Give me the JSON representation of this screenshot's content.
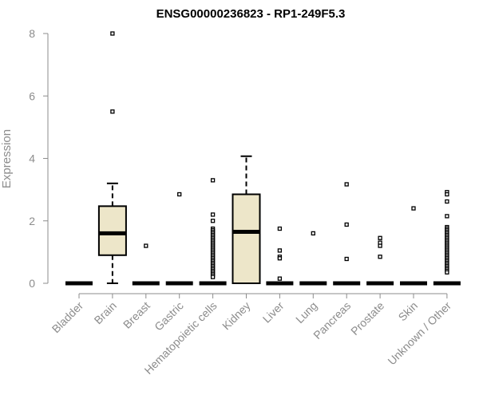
{
  "chart_data": {
    "type": "boxplot",
    "title": "ENSG00000236823 - RP1-249F5.3",
    "ylabel": "Expression",
    "xlabel": "",
    "ylim": [
      0,
      8
    ],
    "yticks": [
      0,
      2,
      4,
      6,
      8
    ],
    "box_fill": "#ede6c9",
    "grid": false,
    "categories": [
      "Bladder",
      "Brain",
      "Breast",
      "Gastric",
      "Hematopoietic cells",
      "Kidney",
      "Liver",
      "Lung",
      "Pancreas",
      "Prostate",
      "Skin",
      "Unknown / Other"
    ],
    "series": [
      {
        "category": "Bladder",
        "q1": 0,
        "median": 0,
        "q3": 0,
        "whisker_low": 0,
        "whisker_high": 0,
        "outliers": []
      },
      {
        "category": "Brain",
        "q1": 0.9,
        "median": 1.6,
        "q3": 2.47,
        "whisker_low": 0,
        "whisker_high": 3.2,
        "outliers": [
          5.5,
          8.0
        ]
      },
      {
        "category": "Breast",
        "q1": 0,
        "median": 0,
        "q3": 0,
        "whisker_low": 0,
        "whisker_high": 0,
        "outliers": [
          1.2
        ]
      },
      {
        "category": "Gastric",
        "q1": 0,
        "median": 0,
        "q3": 0,
        "whisker_low": 0,
        "whisker_high": 0,
        "outliers": [
          2.85
        ]
      },
      {
        "category": "Hematopoietic cells",
        "q1": 0,
        "median": 0,
        "q3": 0,
        "whisker_low": 0,
        "whisker_high": 0,
        "outliers": [
          3.3,
          2.2,
          2.0,
          1.75,
          1.7,
          1.65,
          1.6,
          1.55,
          1.5,
          1.45,
          1.4,
          1.35,
          1.3,
          1.25,
          1.2,
          1.15,
          1.1,
          1.05,
          1.0,
          0.95,
          0.9,
          0.85,
          0.8,
          0.75,
          0.7,
          0.65,
          0.6,
          0.55,
          0.5,
          0.45,
          0.4,
          0.35,
          0.3,
          0.25,
          0.2
        ]
      },
      {
        "category": "Kidney",
        "q1": 0,
        "median": 1.65,
        "q3": 2.85,
        "whisker_low": 0,
        "whisker_high": 4.07,
        "outliers": []
      },
      {
        "category": "Liver",
        "q1": 0,
        "median": 0,
        "q3": 0,
        "whisker_low": 0,
        "whisker_high": 0,
        "outliers": [
          1.75,
          1.05,
          0.85,
          0.8,
          0.15
        ]
      },
      {
        "category": "Lung",
        "q1": 0,
        "median": 0,
        "q3": 0,
        "whisker_low": 0,
        "whisker_high": 0,
        "outliers": [
          1.6
        ]
      },
      {
        "category": "Pancreas",
        "q1": 0,
        "median": 0,
        "q3": 0,
        "whisker_low": 0,
        "whisker_high": 0,
        "outliers": [
          3.17,
          1.88,
          0.78
        ]
      },
      {
        "category": "Prostate",
        "q1": 0,
        "median": 0,
        "q3": 0,
        "whisker_low": 0,
        "whisker_high": 0,
        "outliers": [
          1.45,
          1.3,
          1.2,
          0.85
        ]
      },
      {
        "category": "Skin",
        "q1": 0,
        "median": 0,
        "q3": 0,
        "whisker_low": 0,
        "whisker_high": 0,
        "outliers": [
          2.4
        ]
      },
      {
        "category": "Unknown / Other",
        "q1": 0,
        "median": 0,
        "q3": 0,
        "whisker_low": 0,
        "whisker_high": 0,
        "outliers": [
          2.92,
          2.85,
          2.62,
          2.15,
          1.8,
          1.75,
          1.7,
          1.65,
          1.6,
          1.55,
          1.5,
          1.45,
          1.4,
          1.35,
          1.3,
          1.25,
          1.2,
          1.15,
          1.1,
          1.05,
          1.0,
          0.95,
          0.9,
          0.85,
          0.8,
          0.75,
          0.7,
          0.65,
          0.6,
          0.55,
          0.5,
          0.45,
          0.4,
          0.35
        ]
      }
    ]
  }
}
